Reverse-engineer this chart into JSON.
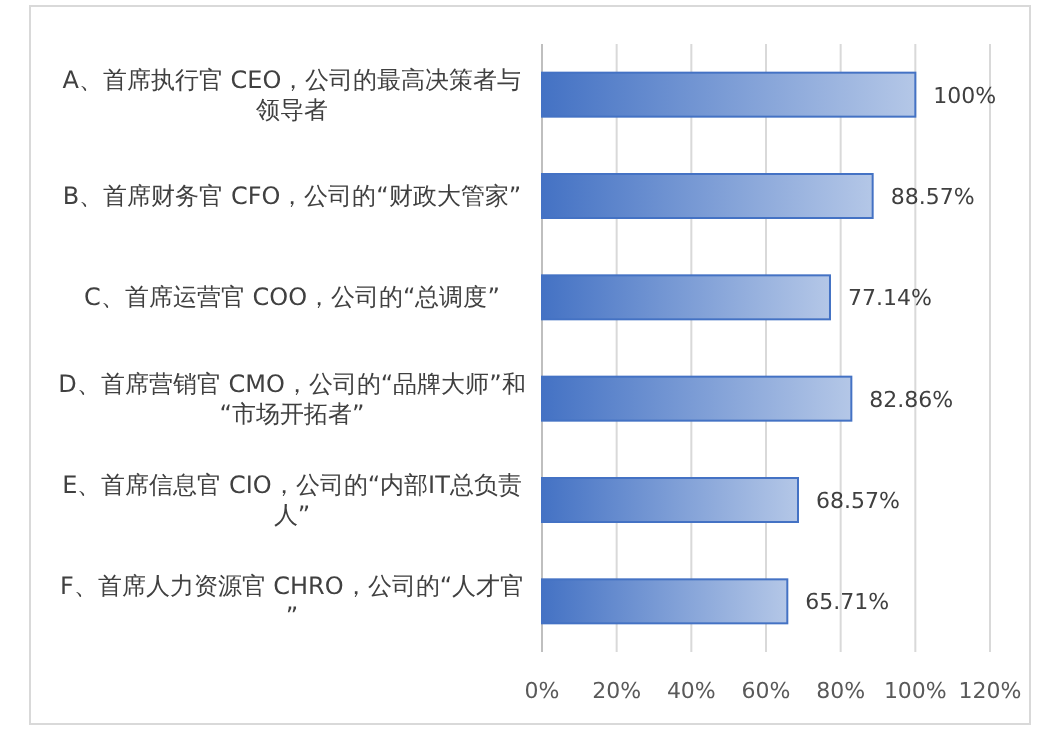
{
  "chart_data": {
    "type": "bar",
    "orientation": "horizontal",
    "categories": [
      "A、首席执行官 CEO，公司的最高决策者与领导者",
      "B、首席财务官 CFO，公司的“财政大管家”",
      "C、首席运营官 COO，公司的“总调度”",
      "D、首席营销官 CMO，公司的“品牌大师”和“市场开拓者”",
      "E、首席信息官 CIO，公司的“内部IT总负责人”",
      "F、首席人力资源官 CHRO，公司的“人才官”"
    ],
    "values": [
      100,
      88.57,
      77.14,
      82.86,
      68.57,
      65.71
    ],
    "value_labels": [
      "100%",
      "88.57%",
      "77.14%",
      "82.86%",
      "68.57%",
      "65.71%"
    ],
    "color": "#4472c4",
    "xlim": [
      0,
      120
    ],
    "xticks": [
      {
        "value": 0,
        "label": "0%"
      },
      {
        "value": 20,
        "label": "20%"
      },
      {
        "value": 40,
        "label": "40%"
      },
      {
        "value": 60,
        "label": "60%"
      },
      {
        "value": 80,
        "label": "80%"
      },
      {
        "value": 100,
        "label": "100%"
      },
      {
        "value": 120,
        "label": "120%"
      }
    ],
    "grid": "x"
  }
}
